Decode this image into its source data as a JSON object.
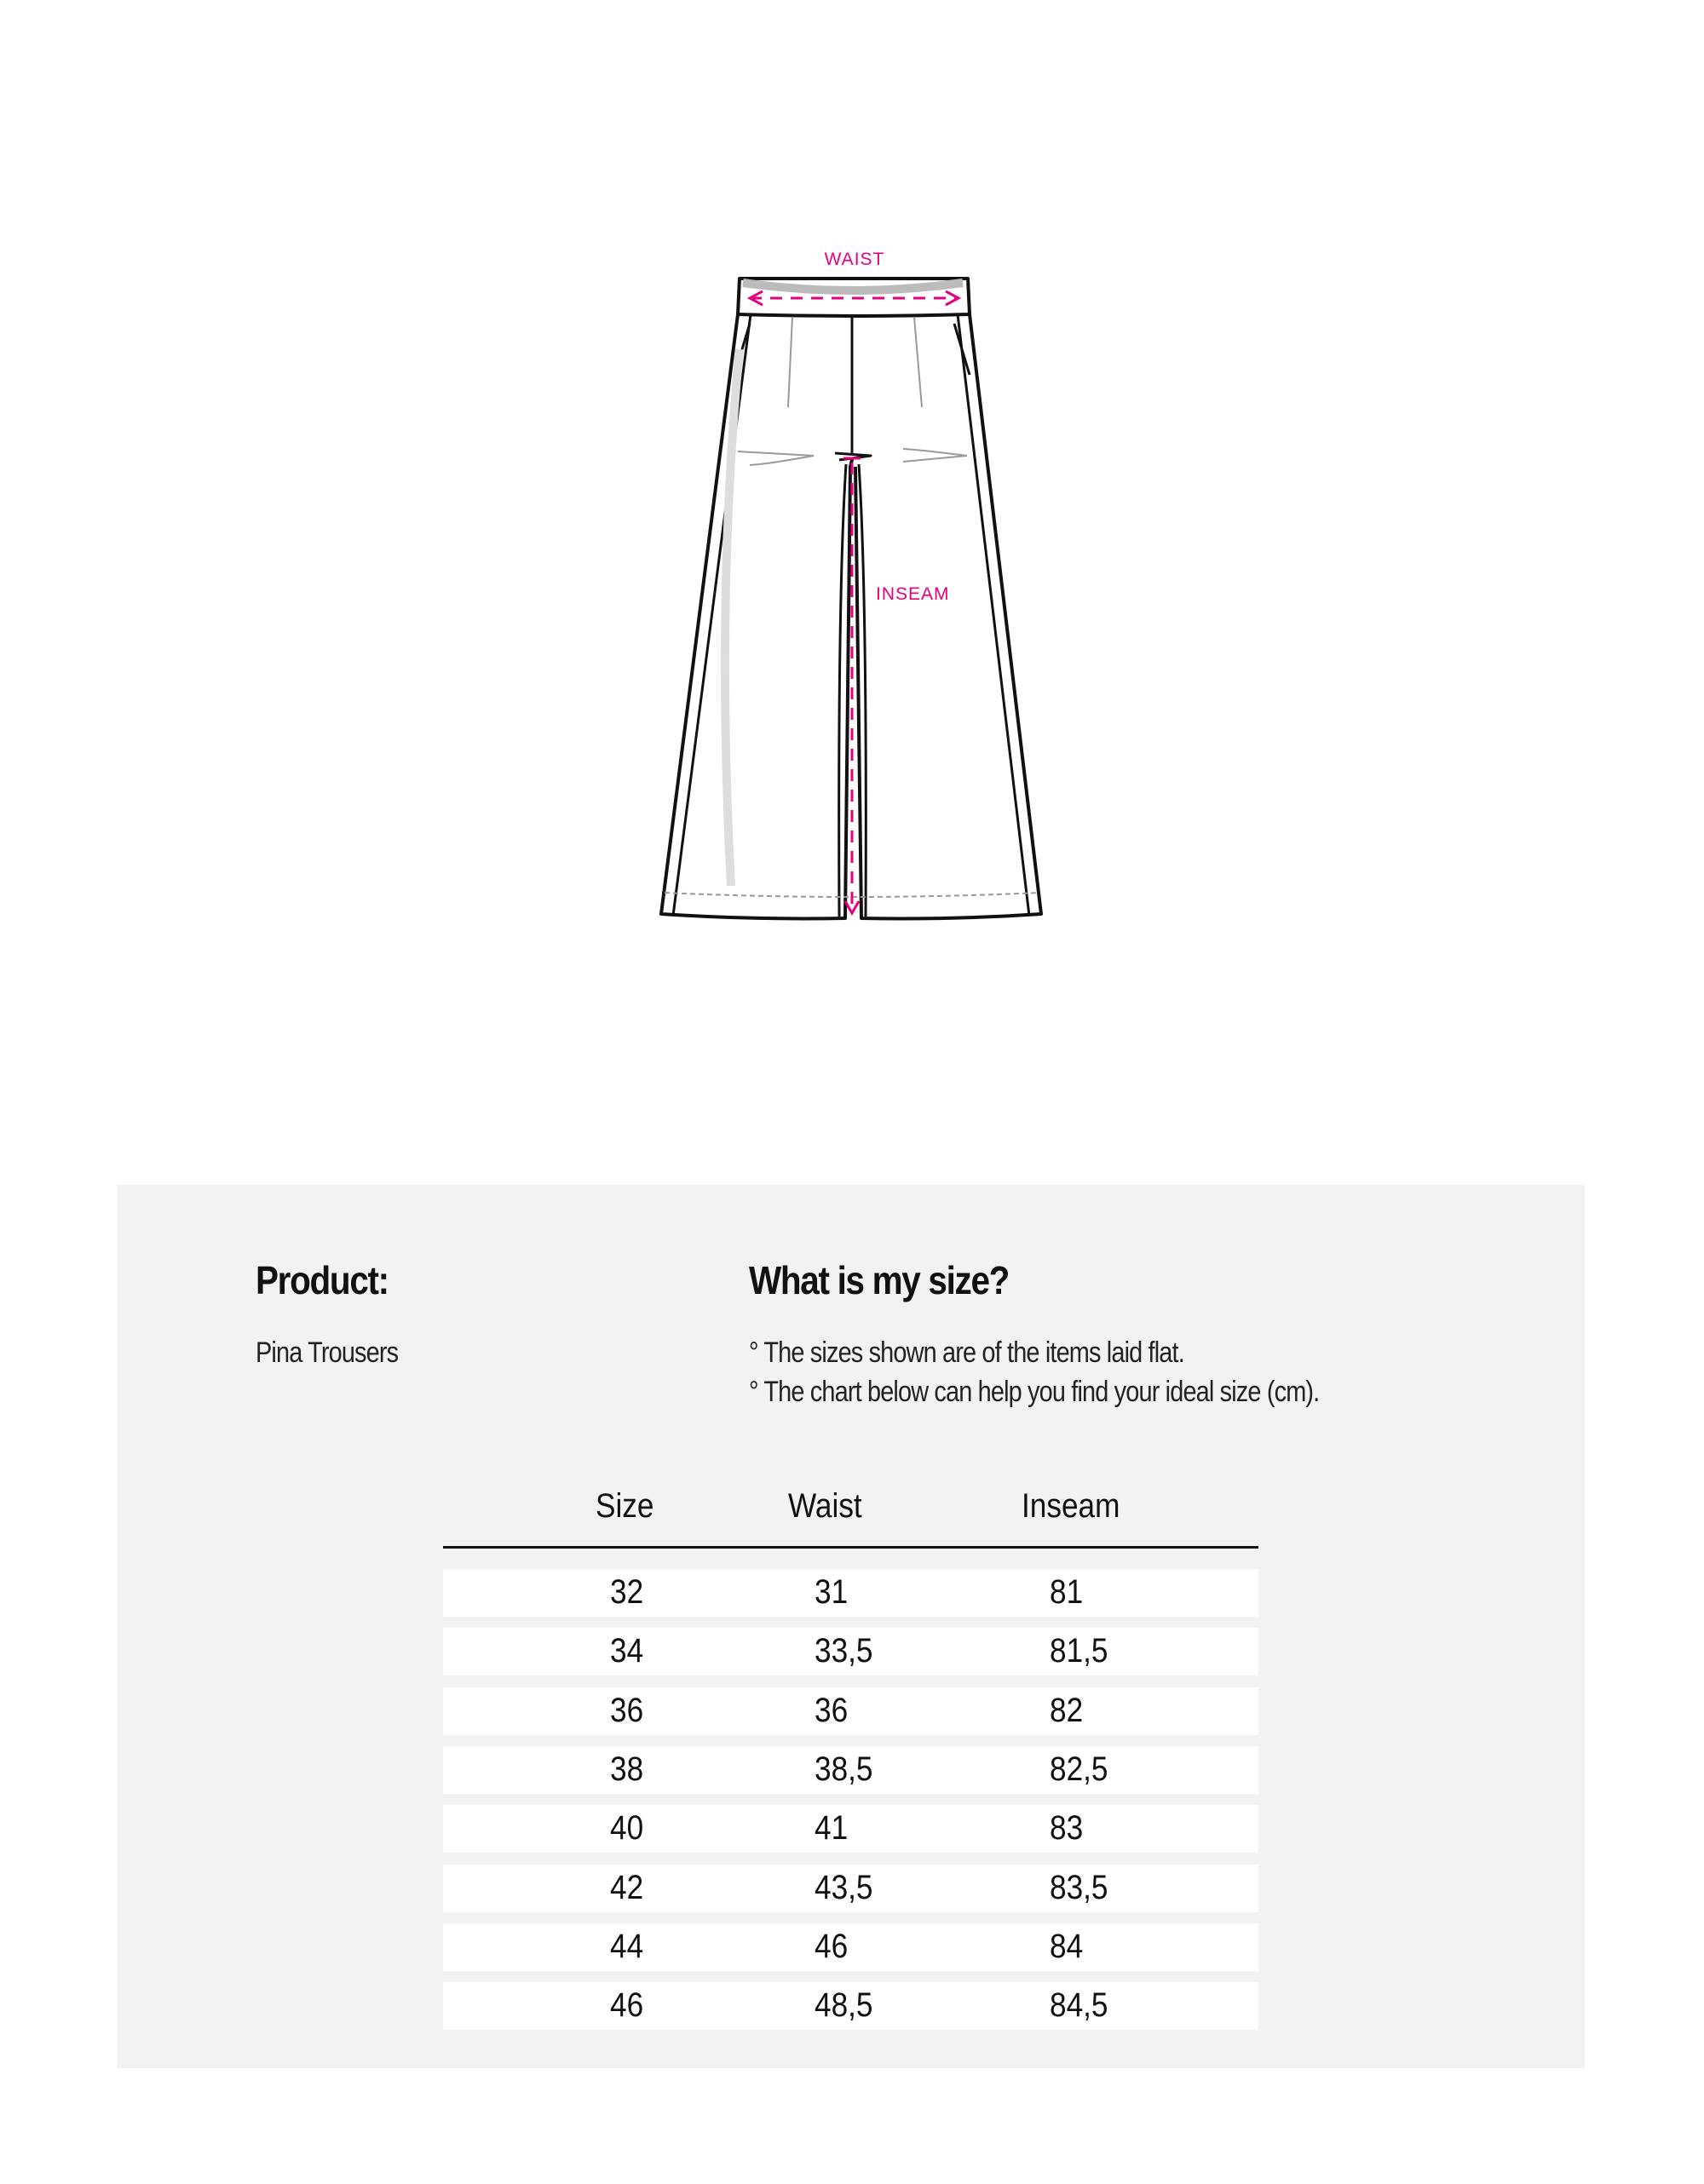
{
  "diagram": {
    "waist_label": "WAIST",
    "inseam_label": "INSEAM",
    "accent_color": "#e6007e"
  },
  "product": {
    "heading": "Product:",
    "name": "Pina Trousers"
  },
  "size_info": {
    "heading": "What is my size?",
    "notes": [
      "° The sizes shown are of the items laid flat.",
      "° The chart below can help you find your ideal size (cm)."
    ]
  },
  "size_table": {
    "headers": [
      "Size",
      "Waist",
      "Inseam"
    ],
    "rows": [
      [
        "32",
        "31",
        "81"
      ],
      [
        "34",
        "33,5",
        "81,5"
      ],
      [
        "36",
        "36",
        "82"
      ],
      [
        "38",
        "38,5",
        "82,5"
      ],
      [
        "40",
        "41",
        "83"
      ],
      [
        "42",
        "43,5",
        "83,5"
      ],
      [
        "44",
        "46",
        "84"
      ],
      [
        "46",
        "48,5",
        "84,5"
      ]
    ]
  }
}
